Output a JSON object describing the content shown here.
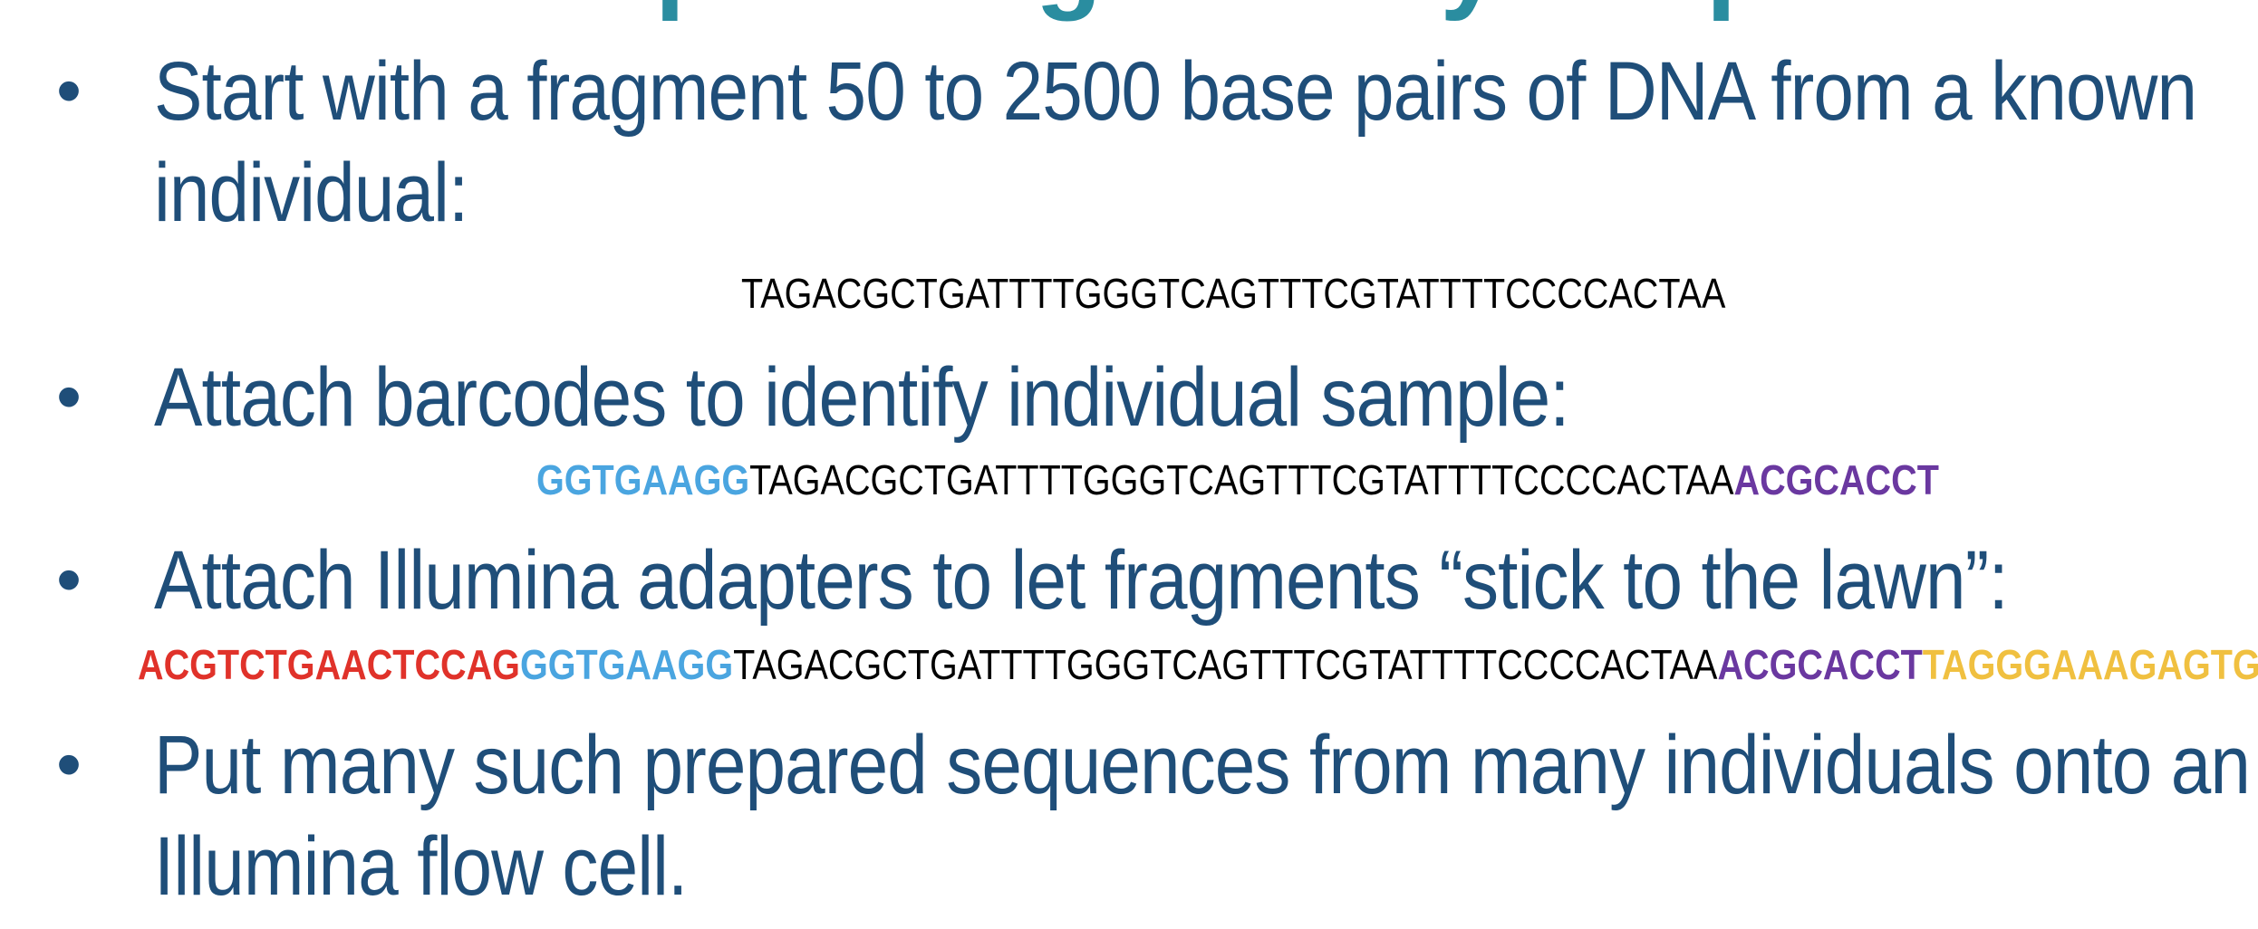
{
  "title": "Sequencing Library Prep",
  "bullets": [
    {
      "line1": "Start with a fragment 50 to 2500 base pairs of DNA from a known",
      "line2": "individual:"
    },
    {
      "line1": "Attach barcodes to identify individual sample:"
    },
    {
      "line1": "Attach Illumina adapters to let fragments “stick to the lawn”:"
    },
    {
      "line1": "Put many such prepared sequences from many individuals onto an",
      "line2": "Illumina flow cell."
    }
  ],
  "bullet_glyph": "•",
  "sequences": {
    "dna": "TAGACGCTGATTTTGGGTCAGTTTCGTATTTTCCCCACTAA",
    "barcode_left": "GGTGAAGG",
    "barcode_right": "ACGCACCT",
    "adapter_left": "ACGTCTGAACTCCAG",
    "adapter_right": "TAGGGAAAGAGTGT"
  },
  "colors": {
    "title": "#2a8da0",
    "bullet_text": "#1f4e79",
    "barcode_left": "#4aa5e0",
    "barcode_right": "#6a38a0",
    "adapter_left": "#e0322a",
    "adapter_right": "#f0c040"
  }
}
